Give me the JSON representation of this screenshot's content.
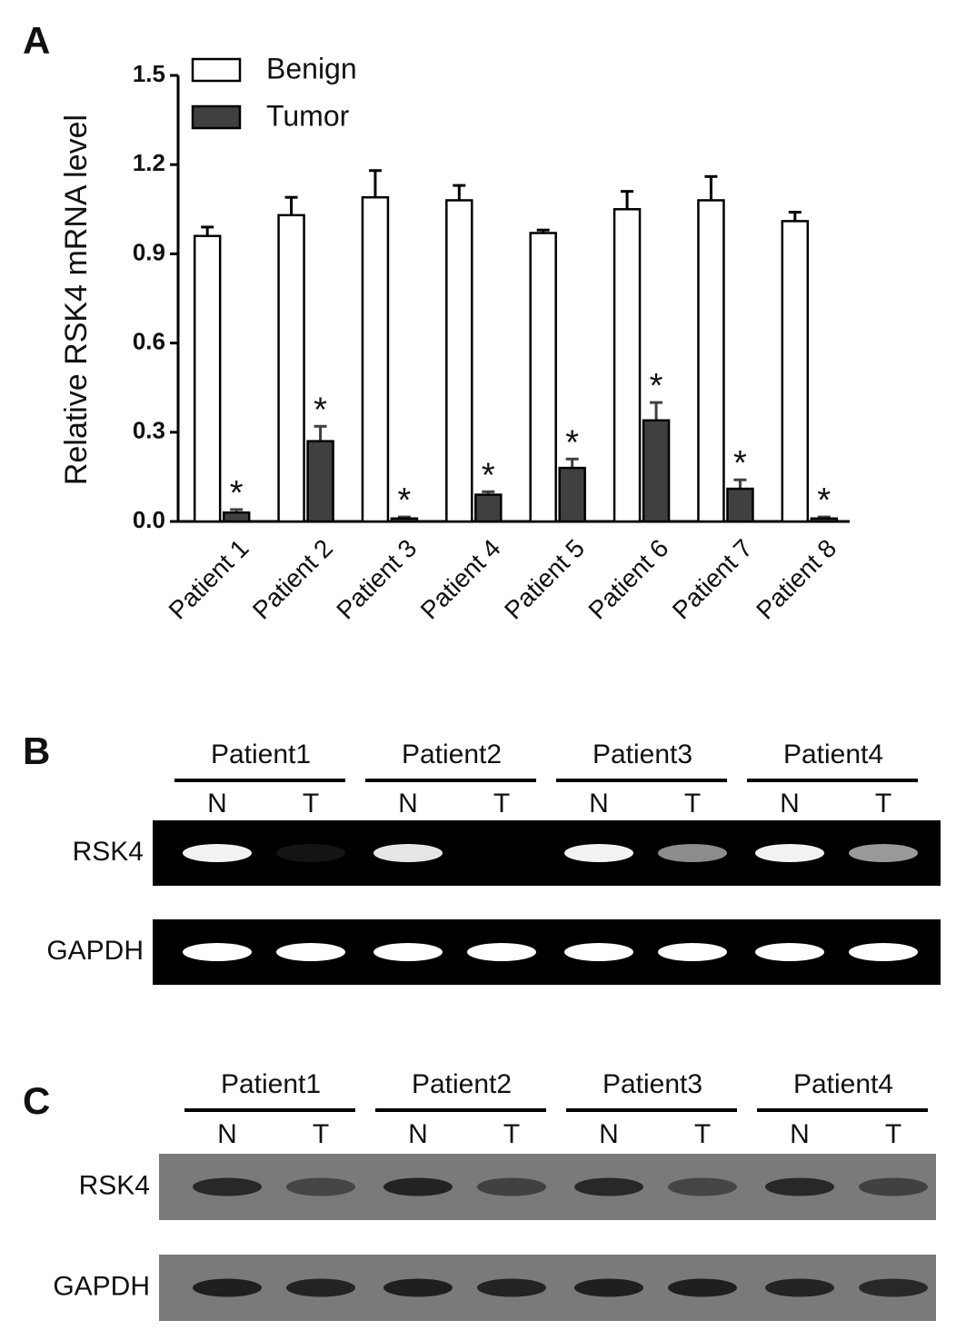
{
  "chart_data": {
    "type": "bar",
    "panel_label": "A",
    "y_label": "Relative RSK4 mRNA level",
    "categories": [
      "Patient 1",
      "Patient 2",
      "Patient 3",
      "Patient 4",
      "Patient 5",
      "Patient 6",
      "Patient 7",
      "Patient 8"
    ],
    "series": [
      {
        "name": "Benign",
        "color": "#ffffff",
        "values": [
          0.96,
          1.03,
          1.09,
          1.08,
          0.97,
          1.05,
          1.08,
          1.01
        ],
        "errors": [
          0.03,
          0.06,
          0.09,
          0.05,
          0.01,
          0.06,
          0.08,
          0.03
        ]
      },
      {
        "name": "Tumor",
        "color": "#404040",
        "values": [
          0.03,
          0.27,
          0.01,
          0.09,
          0.18,
          0.34,
          0.11,
          0.01
        ],
        "errors": [
          0.01,
          0.05,
          0.005,
          0.01,
          0.03,
          0.06,
          0.03,
          0.005
        ],
        "significance": [
          "*",
          "*",
          "*",
          "*",
          "*",
          "*",
          "*",
          "*"
        ]
      }
    ],
    "ylim": [
      0,
      1.5
    ],
    "yticks": [
      {
        "value": 0,
        "label": "0.0"
      },
      0.3,
      0.6,
      0.9,
      1.2,
      1.5
    ],
    "legend": "top-left"
  },
  "panel_b": {
    "label": "B",
    "patients": [
      "Patient1",
      "Patient2",
      "Patient3",
      "Patient4"
    ],
    "lanes": [
      "N",
      "T"
    ],
    "rows": [
      "RSK4",
      "GAPDH"
    ]
  },
  "panel_c": {
    "label": "C",
    "patients": [
      "Patient1",
      "Patient2",
      "Patient3",
      "Patient4"
    ],
    "lanes": [
      "N",
      "T"
    ],
    "rows": [
      "RSK4",
      "GAPDH"
    ]
  }
}
